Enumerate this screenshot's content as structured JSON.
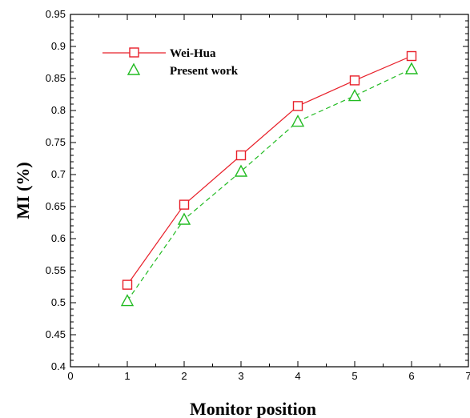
{
  "chart_data": {
    "type": "line",
    "xlabel": "Monitor position",
    "ylabel": "MI (%)",
    "xlim": [
      0,
      7
    ],
    "ylim": [
      0.4,
      0.95
    ],
    "xticks": [
      "0",
      "1",
      "2",
      "3",
      "4",
      "5",
      "6",
      "7"
    ],
    "yticks": [
      "0.4",
      "0.45",
      "0.5",
      "0.55",
      "0.6",
      "0.65",
      "0.7",
      "0.75",
      "0.8",
      "0.85",
      "0.9",
      "0.95"
    ],
    "grid": false,
    "legend_position": "top-left",
    "x": [
      1,
      2,
      3,
      4,
      5,
      6
    ],
    "series": [
      {
        "name": "Wei-Hua",
        "values": [
          0.528,
          0.653,
          0.73,
          0.807,
          0.847,
          0.885
        ],
        "color": "#e8202a",
        "marker": "square",
        "line": "solid"
      },
      {
        "name": "Present work",
        "values": [
          0.503,
          0.63,
          0.705,
          0.783,
          0.823,
          0.865
        ],
        "color": "#22bb22",
        "marker": "triangle",
        "line": "dashed"
      }
    ]
  }
}
